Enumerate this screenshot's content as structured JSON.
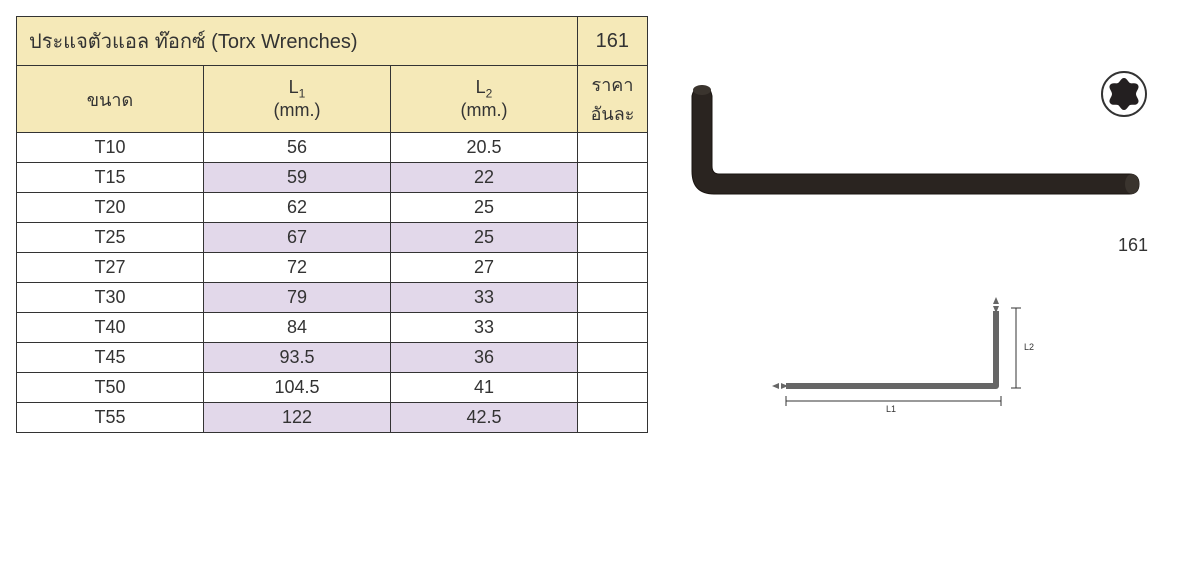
{
  "title": "ประแจตัวแอล ท๊อกซ์ (Torx Wrenches)",
  "page_number": "161",
  "columns": {
    "size": "ขนาด",
    "l1_label": "L",
    "l1_sub": "1",
    "l1_unit": "(mm.)",
    "l2_label": "L",
    "l2_sub": "2",
    "l2_unit": "(mm.)",
    "price": "ราคาอันละ"
  },
  "rows": [
    {
      "size": "T10",
      "l1": "56",
      "l2": "20.5",
      "alt": false
    },
    {
      "size": "T15",
      "l1": "59",
      "l2": "22",
      "alt": true
    },
    {
      "size": "T20",
      "l1": "62",
      "l2": "25",
      "alt": false
    },
    {
      "size": "T25",
      "l1": "67",
      "l2": "25",
      "alt": true
    },
    {
      "size": "T27",
      "l1": "72",
      "l2": "27",
      "alt": false
    },
    {
      "size": "T30",
      "l1": "79",
      "l2": "33",
      "alt": true
    },
    {
      "size": "T40",
      "l1": "84",
      "l2": "33",
      "alt": false
    },
    {
      "size": "T45",
      "l1": "93.5",
      "l2": "36",
      "alt": true
    },
    {
      "size": "T50",
      "l1": "104.5",
      "l2": "41",
      "alt": false
    },
    {
      "size": "T55",
      "l1": "122",
      "l2": "42.5",
      "alt": true
    }
  ],
  "colors": {
    "header_bg": "#f5e9b8",
    "alt_bg": "#e2d8ea",
    "border": "#333333",
    "text": "#333333",
    "torx_fill": "#231f20"
  },
  "icon_caption": "161",
  "diagram_labels": {
    "l1": "L1",
    "l2": "L2"
  }
}
